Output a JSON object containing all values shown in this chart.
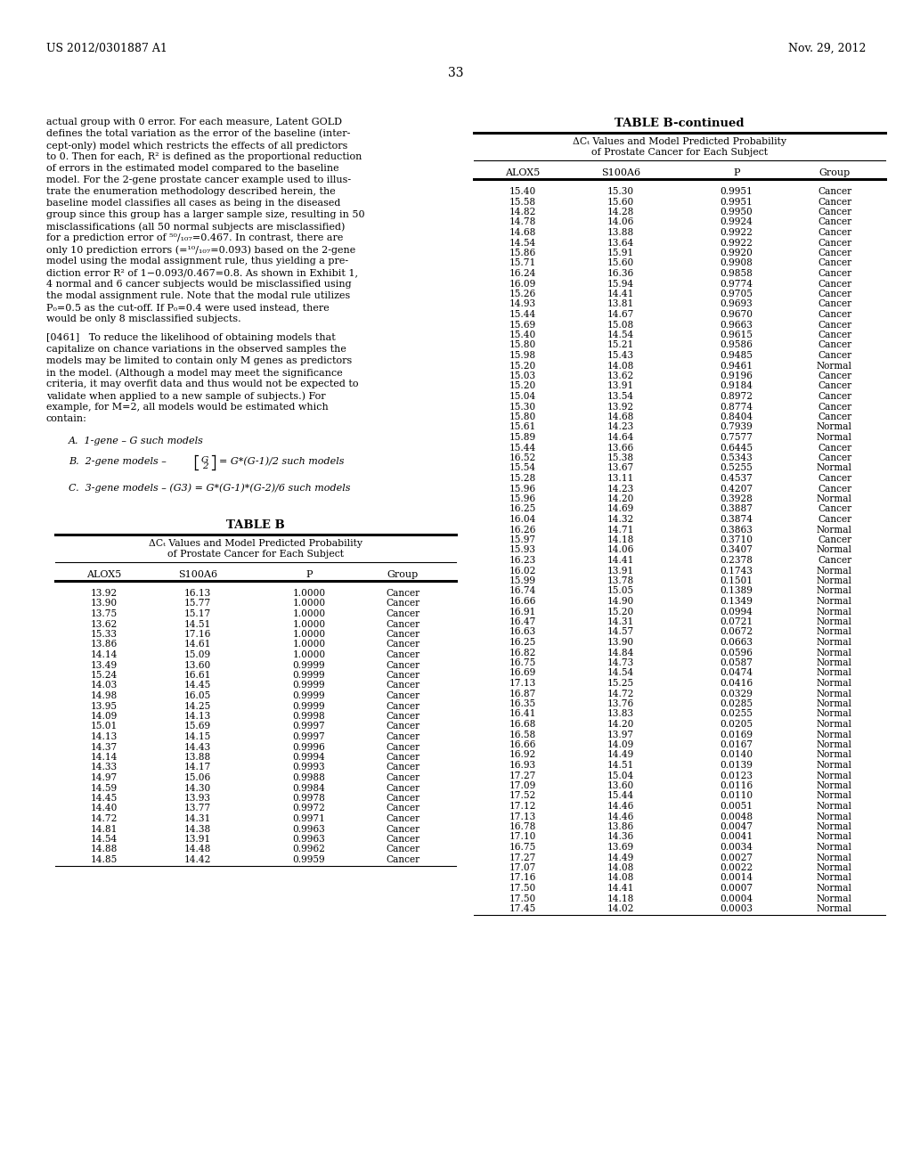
{
  "page_header_left": "US 2012/0301887 A1",
  "page_header_right": "Nov. 29, 2012",
  "page_number": "33",
  "background_color": "#ffffff",
  "text_color": "#000000",
  "table_b_title": "TABLE B",
  "table_b_subtitle1": "ΔCₜ Values and Model Predicted Probability",
  "table_b_subtitle2": "of Prostate Cancer for Each Subject",
  "table_b_headers": [
    "ALOX5",
    "S100A6",
    "P",
    "Group"
  ],
  "table_b_data": [
    [
      "13.92",
      "16.13",
      "1.0000",
      "Cancer"
    ],
    [
      "13.90",
      "15.77",
      "1.0000",
      "Cancer"
    ],
    [
      "13.75",
      "15.17",
      "1.0000",
      "Cancer"
    ],
    [
      "13.62",
      "14.51",
      "1.0000",
      "Cancer"
    ],
    [
      "15.33",
      "17.16",
      "1.0000",
      "Cancer"
    ],
    [
      "13.86",
      "14.61",
      "1.0000",
      "Cancer"
    ],
    [
      "14.14",
      "15.09",
      "1.0000",
      "Cancer"
    ],
    [
      "13.49",
      "13.60",
      "0.9999",
      "Cancer"
    ],
    [
      "15.24",
      "16.61",
      "0.9999",
      "Cancer"
    ],
    [
      "14.03",
      "14.45",
      "0.9999",
      "Cancer"
    ],
    [
      "14.98",
      "16.05",
      "0.9999",
      "Cancer"
    ],
    [
      "13.95",
      "14.25",
      "0.9999",
      "Cancer"
    ],
    [
      "14.09",
      "14.13",
      "0.9998",
      "Cancer"
    ],
    [
      "15.01",
      "15.69",
      "0.9997",
      "Cancer"
    ],
    [
      "14.13",
      "14.15",
      "0.9997",
      "Cancer"
    ],
    [
      "14.37",
      "14.43",
      "0.9996",
      "Cancer"
    ],
    [
      "14.14",
      "13.88",
      "0.9994",
      "Cancer"
    ],
    [
      "14.33",
      "14.17",
      "0.9993",
      "Cancer"
    ],
    [
      "14.97",
      "15.06",
      "0.9988",
      "Cancer"
    ],
    [
      "14.59",
      "14.30",
      "0.9984",
      "Cancer"
    ],
    [
      "14.45",
      "13.93",
      "0.9978",
      "Cancer"
    ],
    [
      "14.40",
      "13.77",
      "0.9972",
      "Cancer"
    ],
    [
      "14.72",
      "14.31",
      "0.9971",
      "Cancer"
    ],
    [
      "14.81",
      "14.38",
      "0.9963",
      "Cancer"
    ],
    [
      "14.54",
      "13.91",
      "0.9963",
      "Cancer"
    ],
    [
      "14.88",
      "14.48",
      "0.9962",
      "Cancer"
    ],
    [
      "14.85",
      "14.42",
      "0.9959",
      "Cancer"
    ]
  ],
  "table_b_cont_title": "TABLE B-continued",
  "table_b_cont_subtitle1": "ΔCₜ Values and Model Predicted Probability",
  "table_b_cont_subtitle2": "of Prostate Cancer for Each Subject",
  "table_b_cont_headers": [
    "ALOX5",
    "S100A6",
    "P",
    "Group"
  ],
  "table_b_cont_data": [
    [
      "15.40",
      "15.30",
      "0.9951",
      "Cancer"
    ],
    [
      "15.58",
      "15.60",
      "0.9951",
      "Cancer"
    ],
    [
      "14.82",
      "14.28",
      "0.9950",
      "Cancer"
    ],
    [
      "14.78",
      "14.06",
      "0.9924",
      "Cancer"
    ],
    [
      "14.68",
      "13.88",
      "0.9922",
      "Cancer"
    ],
    [
      "14.54",
      "13.64",
      "0.9922",
      "Cancer"
    ],
    [
      "15.86",
      "15.91",
      "0.9920",
      "Cancer"
    ],
    [
      "15.71",
      "15.60",
      "0.9908",
      "Cancer"
    ],
    [
      "16.24",
      "16.36",
      "0.9858",
      "Cancer"
    ],
    [
      "16.09",
      "15.94",
      "0.9774",
      "Cancer"
    ],
    [
      "15.26",
      "14.41",
      "0.9705",
      "Cancer"
    ],
    [
      "14.93",
      "13.81",
      "0.9693",
      "Cancer"
    ],
    [
      "15.44",
      "14.67",
      "0.9670",
      "Cancer"
    ],
    [
      "15.69",
      "15.08",
      "0.9663",
      "Cancer"
    ],
    [
      "15.40",
      "14.54",
      "0.9615",
      "Cancer"
    ],
    [
      "15.80",
      "15.21",
      "0.9586",
      "Cancer"
    ],
    [
      "15.98",
      "15.43",
      "0.9485",
      "Cancer"
    ],
    [
      "15.20",
      "14.08",
      "0.9461",
      "Normal"
    ],
    [
      "15.03",
      "13.62",
      "0.9196",
      "Cancer"
    ],
    [
      "15.20",
      "13.91",
      "0.9184",
      "Cancer"
    ],
    [
      "15.04",
      "13.54",
      "0.8972",
      "Cancer"
    ],
    [
      "15.30",
      "13.92",
      "0.8774",
      "Cancer"
    ],
    [
      "15.80",
      "14.68",
      "0.8404",
      "Cancer"
    ],
    [
      "15.61",
      "14.23",
      "0.7939",
      "Normal"
    ],
    [
      "15.89",
      "14.64",
      "0.7577",
      "Normal"
    ],
    [
      "15.44",
      "13.66",
      "0.6445",
      "Cancer"
    ],
    [
      "16.52",
      "15.38",
      "0.5343",
      "Cancer"
    ],
    [
      "15.54",
      "13.67",
      "0.5255",
      "Normal"
    ],
    [
      "15.28",
      "13.11",
      "0.4537",
      "Cancer"
    ],
    [
      "15.96",
      "14.23",
      "0.4207",
      "Cancer"
    ],
    [
      "15.96",
      "14.20",
      "0.3928",
      "Normal"
    ],
    [
      "16.25",
      "14.69",
      "0.3887",
      "Cancer"
    ],
    [
      "16.04",
      "14.32",
      "0.3874",
      "Cancer"
    ],
    [
      "16.26",
      "14.71",
      "0.3863",
      "Normal"
    ],
    [
      "15.97",
      "14.18",
      "0.3710",
      "Cancer"
    ],
    [
      "15.93",
      "14.06",
      "0.3407",
      "Normal"
    ],
    [
      "16.23",
      "14.41",
      "0.2378",
      "Cancer"
    ],
    [
      "16.02",
      "13.91",
      "0.1743",
      "Normal"
    ],
    [
      "15.99",
      "13.78",
      "0.1501",
      "Normal"
    ],
    [
      "16.74",
      "15.05",
      "0.1389",
      "Normal"
    ],
    [
      "16.66",
      "14.90",
      "0.1349",
      "Normal"
    ],
    [
      "16.91",
      "15.20",
      "0.0994",
      "Normal"
    ],
    [
      "16.47",
      "14.31",
      "0.0721",
      "Normal"
    ],
    [
      "16.63",
      "14.57",
      "0.0672",
      "Normal"
    ],
    [
      "16.25",
      "13.90",
      "0.0663",
      "Normal"
    ],
    [
      "16.82",
      "14.84",
      "0.0596",
      "Normal"
    ],
    [
      "16.75",
      "14.73",
      "0.0587",
      "Normal"
    ],
    [
      "16.69",
      "14.54",
      "0.0474",
      "Normal"
    ],
    [
      "17.13",
      "15.25",
      "0.0416",
      "Normal"
    ],
    [
      "16.87",
      "14.72",
      "0.0329",
      "Normal"
    ],
    [
      "16.35",
      "13.76",
      "0.0285",
      "Normal"
    ],
    [
      "16.41",
      "13.83",
      "0.0255",
      "Normal"
    ],
    [
      "16.68",
      "14.20",
      "0.0205",
      "Normal"
    ],
    [
      "16.58",
      "13.97",
      "0.0169",
      "Normal"
    ],
    [
      "16.66",
      "14.09",
      "0.0167",
      "Normal"
    ],
    [
      "16.92",
      "14.49",
      "0.0140",
      "Normal"
    ],
    [
      "16.93",
      "14.51",
      "0.0139",
      "Normal"
    ],
    [
      "17.27",
      "15.04",
      "0.0123",
      "Normal"
    ],
    [
      "17.09",
      "13.60",
      "0.0116",
      "Normal"
    ],
    [
      "17.52",
      "15.44",
      "0.0110",
      "Normal"
    ],
    [
      "17.12",
      "14.46",
      "0.0051",
      "Normal"
    ],
    [
      "17.13",
      "14.46",
      "0.0048",
      "Normal"
    ],
    [
      "16.78",
      "13.86",
      "0.0047",
      "Normal"
    ],
    [
      "17.10",
      "14.36",
      "0.0041",
      "Normal"
    ],
    [
      "16.75",
      "13.69",
      "0.0034",
      "Normal"
    ],
    [
      "17.27",
      "14.49",
      "0.0027",
      "Normal"
    ],
    [
      "17.07",
      "14.08",
      "0.0022",
      "Normal"
    ],
    [
      "17.16",
      "14.08",
      "0.0014",
      "Normal"
    ],
    [
      "17.50",
      "14.41",
      "0.0007",
      "Normal"
    ],
    [
      "17.50",
      "14.18",
      "0.0004",
      "Normal"
    ],
    [
      "17.45",
      "14.02",
      "0.0003",
      "Normal"
    ]
  ],
  "para1_lines": [
    "actual group with 0 error. For each measure, Latent GOLD",
    "defines the total variation as the error of the baseline (inter-",
    "cept-only) model which restricts the effects of all predictors",
    "to 0. Then for each, R² is defined as the proportional reduction",
    "of errors in the estimated model compared to the baseline",
    "model. For the 2-gene prostate cancer example used to illus-",
    "trate the enumeration methodology described herein, the",
    "baseline model classifies all cases as being in the diseased",
    "group since this group has a larger sample size, resulting in 50",
    "misclassifications (all 50 normal subjects are misclassified)",
    "for a prediction error of ⁵⁰/₁₀₇=0.467. In contrast, there are",
    "only 10 prediction errors (=¹⁰/₁₀₇=0.093) based on the 2-gene",
    "model using the modal assignment rule, thus yielding a pre-",
    "diction error R² of 1−0.093/0.467=0.8. As shown in Exhibit 1,",
    "4 normal and 6 cancer subjects would be misclassified using",
    "the modal assignment rule. Note that the modal rule utilizes",
    "P₀=0.5 as the cut-off. If P₀=0.4 were used instead, there",
    "would be only 8 misclassified subjects."
  ],
  "para2_lines": [
    "[0461]   To reduce the likelihood of obtaining models that",
    "capitalize on chance variations in the observed samples the",
    "models may be limited to contain only M genes as predictors",
    "in the model. (Although a model may meet the significance",
    "criteria, it may overfit data and thus would not be expected to",
    "validate when applied to a new sample of subjects.) For",
    "example, for M=2, all models would be estimated which",
    "contain:"
  ]
}
